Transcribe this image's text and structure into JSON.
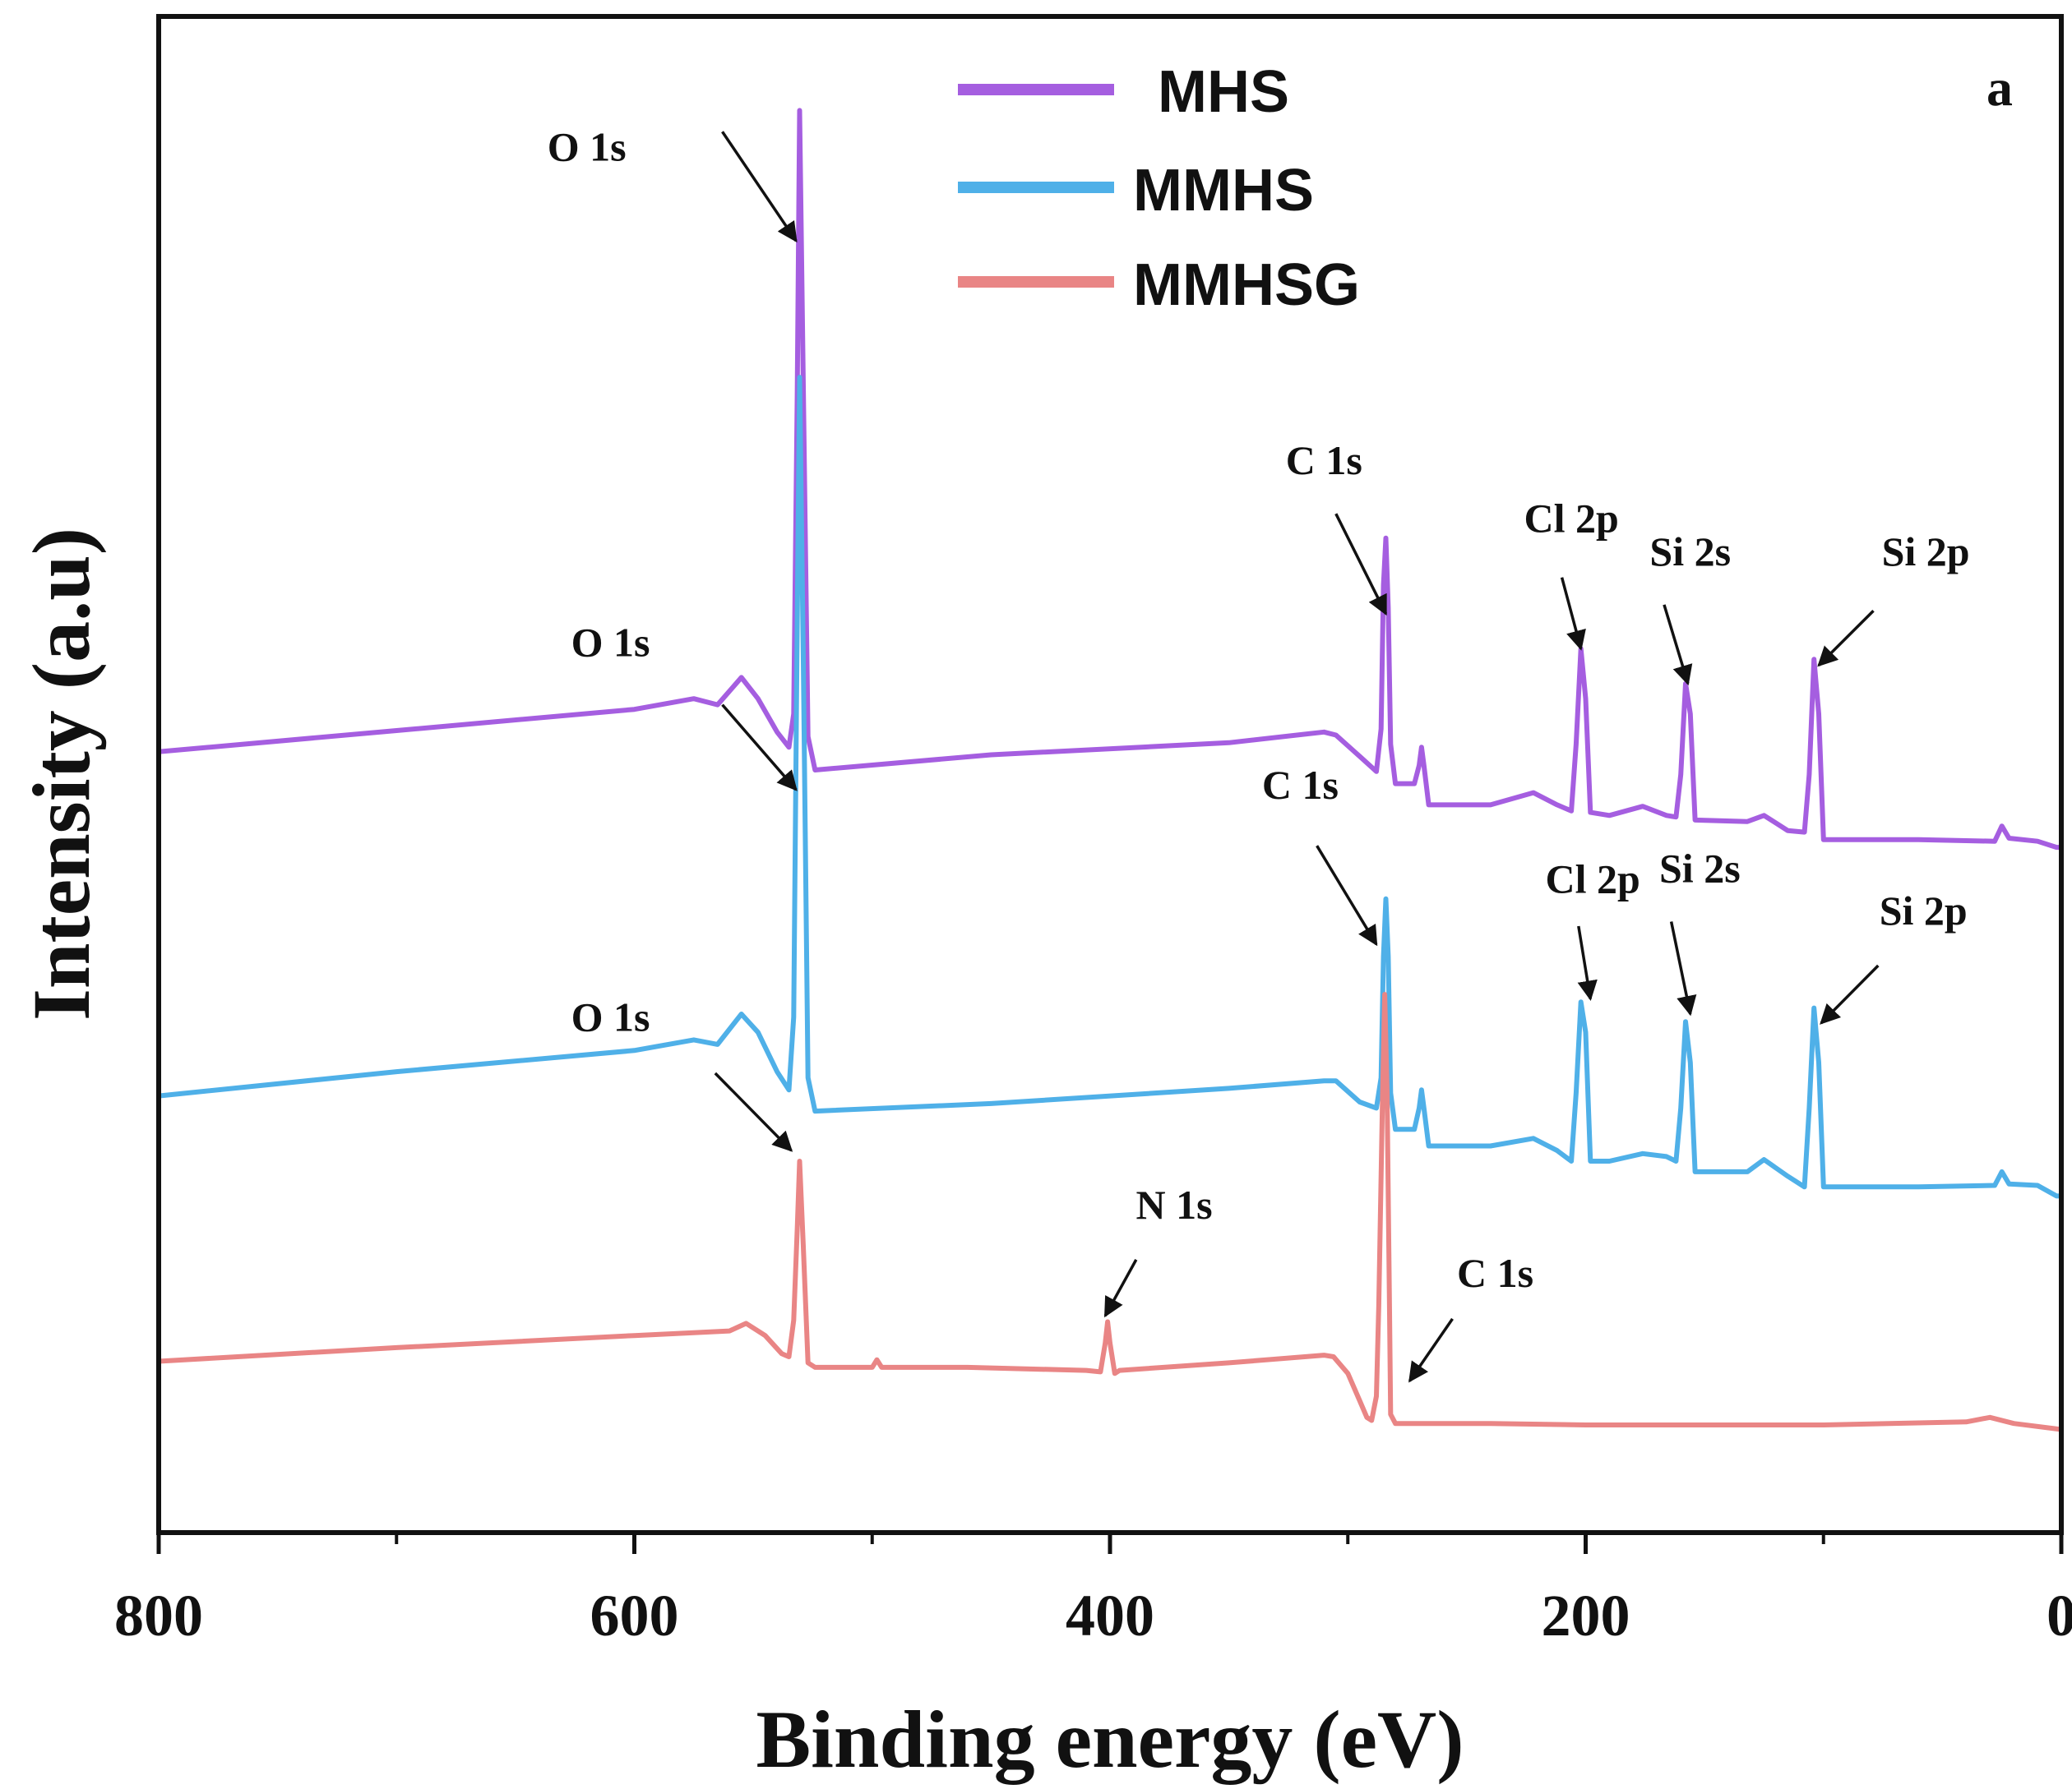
{
  "chart_data": {
    "type": "line",
    "title": "",
    "panel_label": "a",
    "xlabel": "Binding energy (eV)",
    "ylabel": "Intensity (a.u)",
    "xlim": [
      800,
      0
    ],
    "x_ticks": [
      800,
      600,
      400,
      200,
      0
    ],
    "x_tick_labels": [
      "800",
      "600",
      "400",
      "200",
      "0"
    ],
    "ylim": [
      0,
      100
    ],
    "legend_position": "top-center",
    "series": [
      {
        "name": "MHS",
        "color": "#a55ee0",
        "points": [
          [
            800,
            51.5
          ],
          [
            700,
            52.9
          ],
          [
            600,
            54.3
          ],
          [
            575,
            55.0
          ],
          [
            565,
            54.6
          ],
          [
            555,
            56.4
          ],
          [
            548,
            55.0
          ],
          [
            540,
            52.8
          ],
          [
            535,
            51.8
          ],
          [
            533,
            54
          ],
          [
            531.5,
            75
          ],
          [
            530.5,
            93.8
          ],
          [
            529,
            76
          ],
          [
            527,
            52.5
          ],
          [
            524,
            50.3
          ],
          [
            450,
            51.3
          ],
          [
            350,
            52.1
          ],
          [
            310,
            52.8
          ],
          [
            305,
            52.6
          ],
          [
            295,
            51.2
          ],
          [
            288,
            50.2
          ],
          [
            286,
            53
          ],
          [
            285,
            62.5
          ],
          [
            284,
            65.6
          ],
          [
            283,
            61
          ],
          [
            282,
            52
          ],
          [
            280,
            49.4
          ],
          [
            272,
            49.4
          ],
          [
            270,
            50.6
          ],
          [
            269,
            51.8
          ],
          [
            268,
            50.6
          ],
          [
            266,
            48.0
          ],
          [
            240,
            48.0
          ],
          [
            222,
            48.8
          ],
          [
            212,
            48.0
          ],
          [
            206,
            47.6
          ],
          [
            204,
            52
          ],
          [
            202,
            58.3
          ],
          [
            200,
            55
          ],
          [
            198,
            47.5
          ],
          [
            190,
            47.3
          ],
          [
            176,
            47.9
          ],
          [
            166,
            47.3
          ],
          [
            162,
            47.2
          ],
          [
            160,
            50
          ],
          [
            158,
            56.0
          ],
          [
            156,
            54
          ],
          [
            154,
            47.0
          ],
          [
            132,
            46.9
          ],
          [
            125,
            47.3
          ],
          [
            115,
            46.3
          ],
          [
            108,
            46.2
          ],
          [
            106,
            50
          ],
          [
            104,
            57.6
          ],
          [
            102,
            54
          ],
          [
            100,
            45.7
          ],
          [
            60,
            45.7
          ],
          [
            28,
            45.6
          ],
          [
            25,
            46.6
          ],
          [
            22,
            45.8
          ],
          [
            10,
            45.6
          ],
          [
            2,
            45.2
          ],
          [
            0,
            45.2
          ]
        ]
      },
      {
        "name": "MMHS",
        "color": "#4fb0e8",
        "points": [
          [
            800,
            28.8
          ],
          [
            700,
            30.4
          ],
          [
            600,
            31.8
          ],
          [
            575,
            32.5
          ],
          [
            565,
            32.2
          ],
          [
            555,
            34.2
          ],
          [
            548,
            33.0
          ],
          [
            540,
            30.4
          ],
          [
            535,
            29.2
          ],
          [
            533,
            34
          ],
          [
            531.5,
            60
          ],
          [
            530.5,
            76.2
          ],
          [
            529,
            58
          ],
          [
            527,
            30
          ],
          [
            524,
            27.8
          ],
          [
            450,
            28.3
          ],
          [
            350,
            29.3
          ],
          [
            310,
            29.8
          ],
          [
            305,
            29.8
          ],
          [
            295,
            28.4
          ],
          [
            288,
            28.0
          ],
          [
            286,
            30
          ],
          [
            285,
            38
          ],
          [
            284,
            41.8
          ],
          [
            283,
            38
          ],
          [
            282,
            29
          ],
          [
            280,
            26.6
          ],
          [
            272,
            26.6
          ],
          [
            270,
            28.0
          ],
          [
            269,
            29.2
          ],
          [
            268,
            28.0
          ],
          [
            266,
            25.5
          ],
          [
            240,
            25.5
          ],
          [
            222,
            26.0
          ],
          [
            212,
            25.2
          ],
          [
            206,
            24.5
          ],
          [
            204,
            29
          ],
          [
            202,
            35.0
          ],
          [
            200,
            33
          ],
          [
            198,
            24.5
          ],
          [
            190,
            24.5
          ],
          [
            176,
            25.0
          ],
          [
            166,
            24.8
          ],
          [
            162,
            24.5
          ],
          [
            160,
            28
          ],
          [
            158,
            33.7
          ],
          [
            156,
            31
          ],
          [
            154,
            23.8
          ],
          [
            132,
            23.8
          ],
          [
            125,
            24.6
          ],
          [
            115,
            23.5
          ],
          [
            108,
            22.8
          ],
          [
            106,
            28
          ],
          [
            104,
            34.6
          ],
          [
            102,
            31
          ],
          [
            100,
            22.8
          ],
          [
            60,
            22.8
          ],
          [
            28,
            22.9
          ],
          [
            25,
            23.8
          ],
          [
            22,
            23.0
          ],
          [
            10,
            22.9
          ],
          [
            2,
            22.2
          ],
          [
            0,
            22.2
          ]
        ]
      },
      {
        "name": "MMHSG",
        "color": "#e98585",
        "points": [
          [
            800,
            11.3
          ],
          [
            700,
            12.2
          ],
          [
            600,
            13.0
          ],
          [
            560,
            13.3
          ],
          [
            553,
            13.8
          ],
          [
            545,
            13.0
          ],
          [
            538,
            11.8
          ],
          [
            535,
            11.6
          ],
          [
            533,
            14
          ],
          [
            531.5,
            20
          ],
          [
            530.5,
            24.5
          ],
          [
            529,
            19
          ],
          [
            527,
            11.2
          ],
          [
            524,
            10.9
          ],
          [
            500,
            10.9
          ],
          [
            498,
            11.4
          ],
          [
            496,
            10.9
          ],
          [
            460,
            10.9
          ],
          [
            410,
            10.7
          ],
          [
            404,
            10.6
          ],
          [
            402,
            12.5
          ],
          [
            401,
            13.9
          ],
          [
            400,
            12.5
          ],
          [
            398,
            10.5
          ],
          [
            396,
            10.7
          ],
          [
            350,
            11.2
          ],
          [
            310,
            11.7
          ],
          [
            306,
            11.6
          ],
          [
            300,
            10.5
          ],
          [
            295,
            8.7
          ],
          [
            292,
            7.6
          ],
          [
            290,
            7.4
          ],
          [
            288,
            9
          ],
          [
            287,
            15
          ],
          [
            285.5,
            28
          ],
          [
            284.5,
            35.5
          ],
          [
            283.5,
            29
          ],
          [
            282.5,
            15
          ],
          [
            282,
            7.8
          ],
          [
            280,
            7.2
          ],
          [
            240,
            7.2
          ],
          [
            200,
            7.1
          ],
          [
            100,
            7.1
          ],
          [
            40,
            7.3
          ],
          [
            30,
            7.6
          ],
          [
            20,
            7.2
          ],
          [
            0,
            6.8
          ]
        ]
      }
    ],
    "annotations": [
      {
        "text": "O 1s",
        "series": "MHS",
        "tip": [
          532,
          85.2
        ],
        "tail": [
          563,
          92.4
        ],
        "label_at": [
          620,
          90.5
        ]
      },
      {
        "text": "C 1s",
        "series": "MHS",
        "tip": [
          284,
          60.6
        ],
        "tail": [
          305,
          67.2
        ],
        "label_at": [
          310,
          69.8
        ]
      },
      {
        "text": "Cl 2p",
        "series": "MHS",
        "tip": [
          202,
          58.3
        ],
        "tail": [
          210,
          63.0
        ],
        "label_at": [
          206,
          66.0
        ]
      },
      {
        "text": "Si 2s",
        "series": "MHS",
        "tip": [
          157,
          56.0
        ],
        "tail": [
          167,
          61.2
        ],
        "label_at": [
          156,
          63.8
        ]
      },
      {
        "text": "Si 2p",
        "series": "MHS",
        "tip": [
          102,
          57.2
        ],
        "tail": [
          79,
          60.8
        ],
        "label_at": [
          57,
          63.8
        ]
      },
      {
        "text": "O 1s",
        "series": "MMHS",
        "tip": [
          532,
          49.0
        ],
        "tail": [
          563,
          54.6
        ],
        "label_at": [
          610,
          57.8
        ]
      },
      {
        "text": "C 1s",
        "series": "MMHS",
        "tip": [
          288,
          38.8
        ],
        "tail": [
          313,
          45.3
        ],
        "label_at": [
          320,
          48.4
        ]
      },
      {
        "text": "Cl 2p",
        "series": "MMHS",
        "tip": [
          198,
          35.2
        ],
        "tail": [
          203,
          40.0
        ],
        "label_at": [
          197,
          42.2
        ]
      },
      {
        "text": "Si 2s",
        "series": "MMHS",
        "tip": [
          156,
          34.2
        ],
        "tail": [
          164,
          40.3
        ],
        "label_at": [
          152,
          42.9
        ]
      },
      {
        "text": "Si 2p",
        "series": "MMHS",
        "tip": [
          101,
          33.6
        ],
        "tail": [
          77,
          37.4
        ],
        "label_at": [
          58,
          40.1
        ]
      },
      {
        "text": "O 1s",
        "series": "MMHSG",
        "tip": [
          534,
          25.2
        ],
        "tail": [
          566,
          30.3
        ],
        "label_at": [
          610,
          33.1
        ]
      },
      {
        "text": "N 1s",
        "series": "MMHSG",
        "tip": [
          402,
          14.3
        ],
        "tail": [
          389,
          18.0
        ],
        "label_at": [
          373,
          20.7
        ]
      },
      {
        "text": "C 1s",
        "series": "MMHSG",
        "tip": [
          274,
          10.0
        ],
        "tail": [
          256,
          14.1
        ],
        "label_at": [
          238,
          16.2
        ]
      }
    ]
  }
}
